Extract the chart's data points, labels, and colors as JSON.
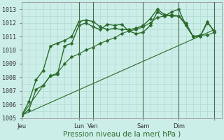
{
  "bg_color": "#cceee8",
  "grid_color": "#aad4ce",
  "line_color": "#2a6b2a",
  "ylim": [
    1005,
    1013.5
  ],
  "xlim": [
    0,
    28
  ],
  "ylabel_text": "Pression niveau de la mer( hPa )",
  "x_ticks_pos": [
    0,
    8,
    10,
    17,
    22,
    27
  ],
  "x_tick_labels": [
    "Jeu",
    "Lun",
    "Ven",
    "Sam",
    "Dim",
    ""
  ],
  "vlines_x": [
    8,
    10,
    17,
    22,
    27
  ],
  "yticks": [
    1005,
    1006,
    1007,
    1008,
    1009,
    1010,
    1011,
    1012,
    1013
  ],
  "series": [
    {
      "x": [
        0,
        1,
        2,
        3,
        4,
        5,
        6,
        7,
        8,
        9,
        10,
        11,
        12,
        13,
        14,
        15,
        16,
        17,
        18,
        19,
        20,
        21,
        22,
        23,
        24,
        25,
        26,
        27
      ],
      "y": [
        1005.2,
        1005.6,
        1007.1,
        1007.4,
        1008.1,
        1008.2,
        1010.3,
        1010.5,
        1011.8,
        1012.0,
        1011.7,
        1011.5,
        1011.9,
        1011.8,
        1011.9,
        1011.4,
        1011.2,
        1011.3,
        1011.8,
        1012.8,
        1012.5,
        1012.8,
        1013.0,
        1011.8,
        1011.0,
        1011.0,
        1012.0,
        1011.4
      ],
      "marker": "D",
      "markersize": 2.5,
      "linewidth": 1.0
    },
    {
      "x": [
        0,
        1,
        2,
        3,
        4,
        5,
        6,
        7,
        8,
        9,
        10,
        11,
        12,
        13,
        14,
        15,
        16,
        17,
        18,
        19,
        20,
        21,
        22,
        23,
        24,
        25,
        26,
        27
      ],
      "y": [
        1005.2,
        1006.2,
        1007.8,
        1008.5,
        1010.3,
        1010.5,
        1010.7,
        1011.0,
        1012.1,
        1012.2,
        1012.1,
        1011.7,
        1011.5,
        1011.6,
        1011.5,
        1011.5,
        1011.6,
        1011.8,
        1012.3,
        1013.0,
        1012.6,
        1012.5,
        1012.5,
        1012.0,
        1011.0,
        1011.0,
        1012.1,
        1011.3
      ],
      "marker": "D",
      "markersize": 2.5,
      "linewidth": 1.0
    },
    {
      "x": [
        0,
        4,
        5,
        6,
        7,
        8,
        9,
        10,
        11,
        12,
        13,
        14,
        15,
        16,
        17,
        18,
        19,
        20,
        21,
        22,
        23,
        24,
        25,
        26,
        27
      ],
      "y": [
        1005.2,
        1008.1,
        1008.3,
        1009.0,
        1009.5,
        1009.7,
        1010.0,
        1010.2,
        1010.5,
        1010.7,
        1010.9,
        1011.2,
        1011.4,
        1011.5,
        1011.7,
        1012.0,
        1012.4,
        1012.5,
        1012.6,
        1012.5,
        1011.8,
        1011.0,
        1011.1,
        1011.1,
        1011.3
      ],
      "marker": "D",
      "markersize": 2.5,
      "linewidth": 0.8
    },
    {
      "x": [
        0,
        27
      ],
      "y": [
        1005.2,
        1011.5
      ],
      "marker": null,
      "markersize": 0,
      "linewidth": 0.8
    }
  ],
  "tick_fontsize": 6,
  "xlabel_fontsize": 7.5
}
